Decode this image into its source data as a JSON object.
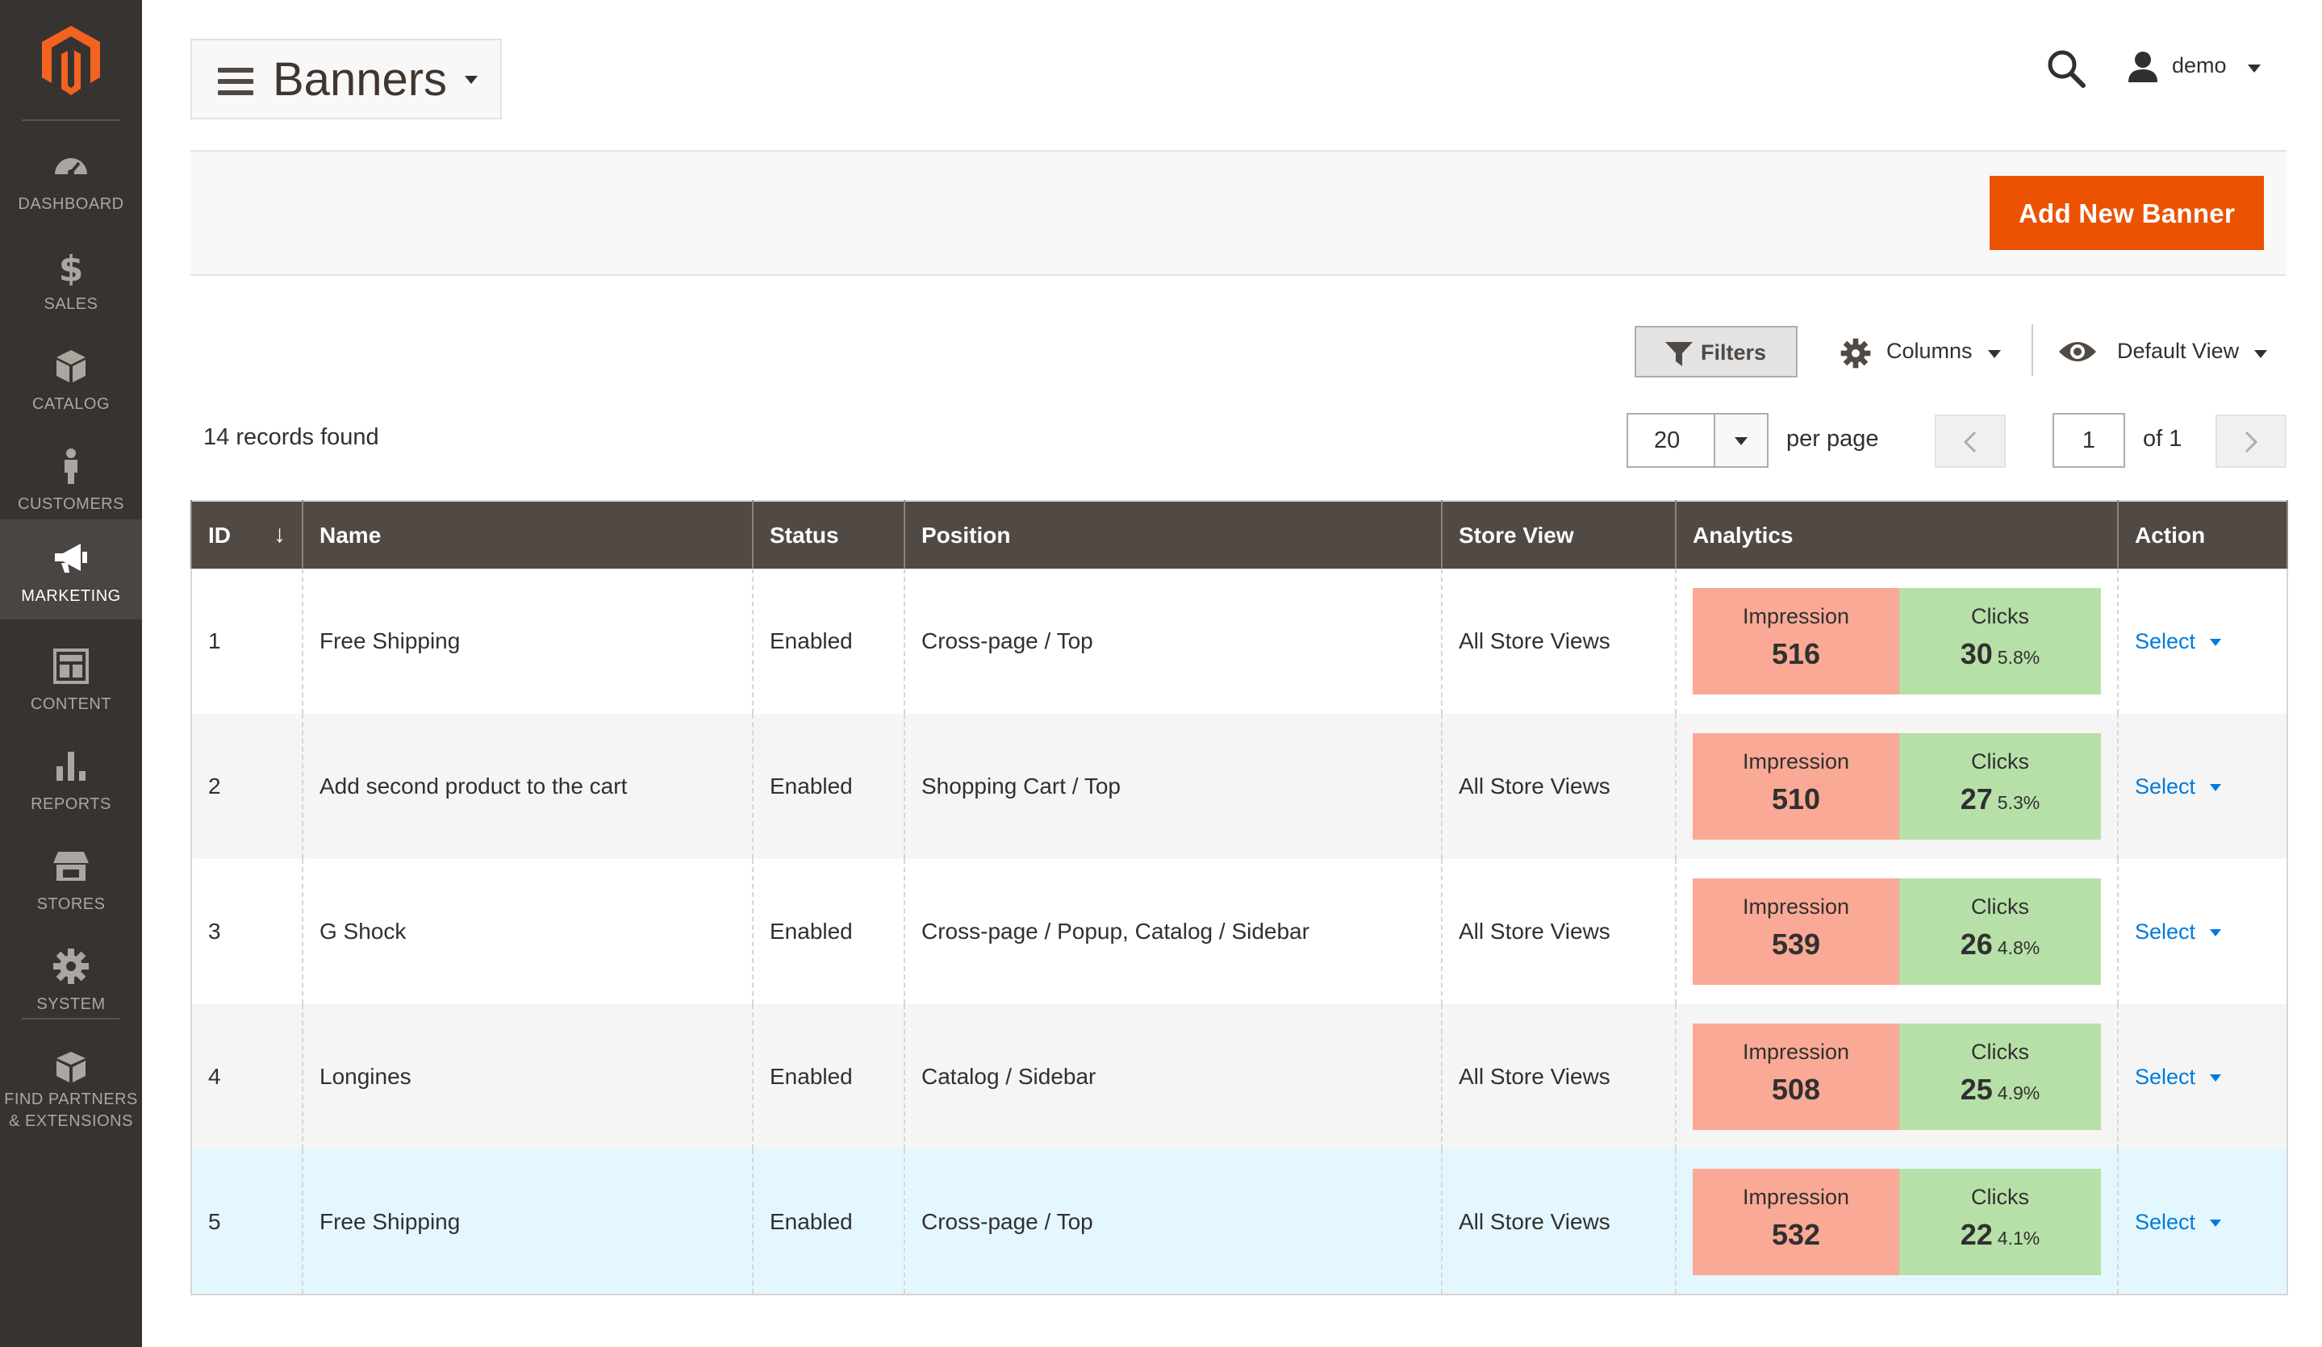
{
  "sidebar": {
    "items": [
      {
        "label": "DASHBOARD",
        "icon": "dashboard-icon"
      },
      {
        "label": "SALES",
        "icon": "dollar-icon"
      },
      {
        "label": "CATALOG",
        "icon": "box-icon"
      },
      {
        "label": "CUSTOMERS",
        "icon": "person-icon"
      },
      {
        "label": "MARKETING",
        "icon": "megaphone-icon",
        "active": true
      },
      {
        "label": "CONTENT",
        "icon": "layout-icon"
      },
      {
        "label": "REPORTS",
        "icon": "bar-chart-icon"
      },
      {
        "label": "STORES",
        "icon": "storefront-icon"
      },
      {
        "label": "SYSTEM",
        "icon": "gear-icon"
      },
      {
        "label": "FIND PARTNERS",
        "label2": "& EXTENSIONS",
        "icon": "blocks-icon"
      }
    ]
  },
  "header": {
    "title": "Banners",
    "user": "demo"
  },
  "actions": {
    "add_label": "Add New Banner"
  },
  "toolbar": {
    "filters": "Filters",
    "columns": "Columns",
    "view": "Default View",
    "records": "14 records found",
    "per_page_value": "20",
    "per_page_label": "per page",
    "page": "1",
    "page_of": "of 1"
  },
  "table": {
    "columns": [
      "ID",
      "Name",
      "Status",
      "Position",
      "Store View",
      "Analytics",
      "Action"
    ],
    "impression_label": "Impression",
    "clicks_label": "Clicks",
    "action_label": "Select",
    "rows": [
      {
        "id": "1",
        "name": "Free Shipping",
        "status": "Enabled",
        "position": "Cross-page / Top",
        "store": "All Store Views",
        "impressions": "516",
        "clicks": "30",
        "ctr": "5.8%"
      },
      {
        "id": "2",
        "name": "Add second product to the cart",
        "status": "Enabled",
        "position": "Shopping Cart / Top",
        "store": "All Store Views",
        "impressions": "510",
        "clicks": "27",
        "ctr": "5.3%"
      },
      {
        "id": "3",
        "name": "G Shock",
        "status": "Enabled",
        "position": "Cross-page / Popup, Catalog / Sidebar",
        "store": "All Store Views",
        "impressions": "539",
        "clicks": "26",
        "ctr": "4.8%"
      },
      {
        "id": "4",
        "name": "Longines",
        "status": "Enabled",
        "position": "Catalog / Sidebar",
        "store": "All Store Views",
        "impressions": "508",
        "clicks": "25",
        "ctr": "4.9%"
      },
      {
        "id": "5",
        "name": "Free Shipping",
        "status": "Enabled",
        "position": "Cross-page / Top",
        "store": "All Store Views",
        "impressions": "532",
        "clicks": "22",
        "ctr": "4.1%"
      }
    ]
  },
  "colors": {
    "sidebar_bg": "#373330",
    "accent": "#eb5202",
    "header_bg": "#514943",
    "impression_bg": "#f9a995",
    "clicks_bg": "#b7e0a8",
    "link": "#007bdb"
  }
}
